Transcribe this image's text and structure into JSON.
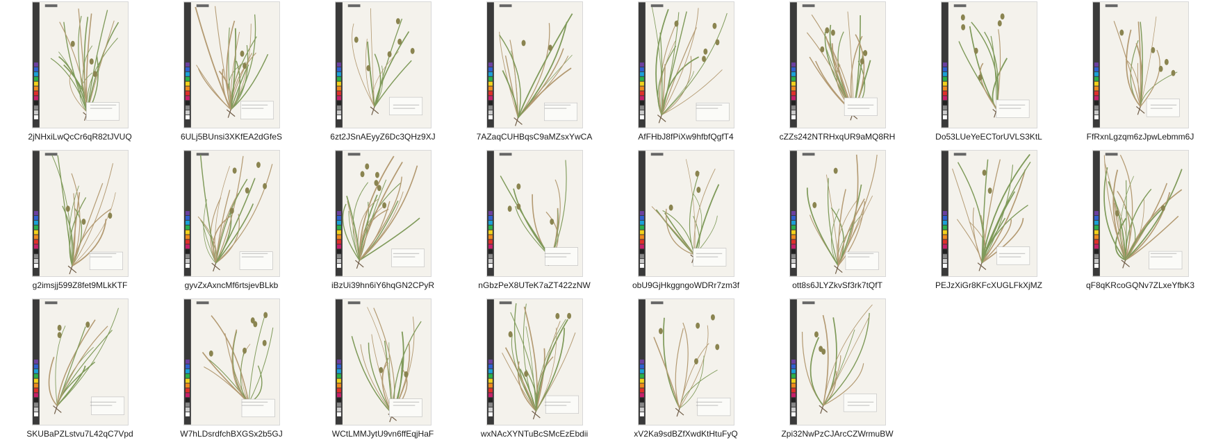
{
  "window": {
    "view": "large-icons"
  },
  "colors": {
    "background": "#ffffff",
    "paper": "#f4f2ec",
    "strip_dark": "#3a3a3a",
    "plant_green": "#7f9a5a",
    "plant_tan": "#b39a72"
  },
  "files": [
    {
      "name": "2jNHxiLwQcCr6qR82tJVUQ",
      "icon": "herbarium-specimen-thumbnail"
    },
    {
      "name": "6ULj5BUnsi3XKfEA2dGfeS",
      "icon": "herbarium-specimen-thumbnail"
    },
    {
      "name": "6zt2JSnAEyyZ6Dc3QHz9XJ",
      "icon": "herbarium-specimen-thumbnail"
    },
    {
      "name": "7AZaqCUHBqsC9aMZsxYwCA",
      "icon": "herbarium-specimen-thumbnail"
    },
    {
      "name": "AfFHbJ8fPiXw9hfbfQgfT4",
      "icon": "herbarium-specimen-thumbnail"
    },
    {
      "name": "cZZs242NTRHxqUR9aMQ8RH",
      "icon": "herbarium-specimen-thumbnail"
    },
    {
      "name": "Do53LUeYeECTorUVLS3KtL",
      "icon": "herbarium-specimen-thumbnail"
    },
    {
      "name": "FfRxnLgzqm6zJpwLebmm6J",
      "icon": "herbarium-specimen-thumbnail"
    },
    {
      "name": "g2imsjj599Z8fet9MLkKTF",
      "icon": "herbarium-specimen-thumbnail"
    },
    {
      "name": "gyvZxAxncMf6rtsjevBLkb",
      "icon": "herbarium-specimen-thumbnail"
    },
    {
      "name": "iBzUi39hn6iY6hqGN2CPyR",
      "icon": "herbarium-specimen-thumbnail"
    },
    {
      "name": "nGbzPeX8UTeK7aZT422zNW",
      "icon": "herbarium-specimen-thumbnail"
    },
    {
      "name": "obU9GjHkggngoWDRr7zm3f",
      "icon": "herbarium-specimen-thumbnail"
    },
    {
      "name": "ott8s6JLYZkvSf3rk7tQfT",
      "icon": "herbarium-specimen-thumbnail"
    },
    {
      "name": "PEJzXiGr8KFcXUGLFkXjMZ",
      "icon": "herbarium-specimen-thumbnail"
    },
    {
      "name": "qF8qKRcoGQNv7ZLxeYfbK3",
      "icon": "herbarium-specimen-thumbnail"
    },
    {
      "name": "SKUBaPZLstvu7L42qC7Vpd",
      "icon": "herbarium-specimen-thumbnail"
    },
    {
      "name": "W7hLDsrdfchBXGSx2b5GJ",
      "icon": "herbarium-specimen-thumbnail"
    },
    {
      "name": "WCtLMMJytU9vn6ffEqjHaF",
      "icon": "herbarium-specimen-thumbnail"
    },
    {
      "name": "wxNAcXYNTuBcSMcEzEbdii",
      "icon": "herbarium-specimen-thumbnail"
    },
    {
      "name": "xV2Ka9sdBZfXwdKtHtuFyQ",
      "icon": "herbarium-specimen-thumbnail"
    },
    {
      "name": "Zpi32NwPzCJArcCZWrmuBW",
      "icon": "herbarium-specimen-thumbnail"
    }
  ]
}
